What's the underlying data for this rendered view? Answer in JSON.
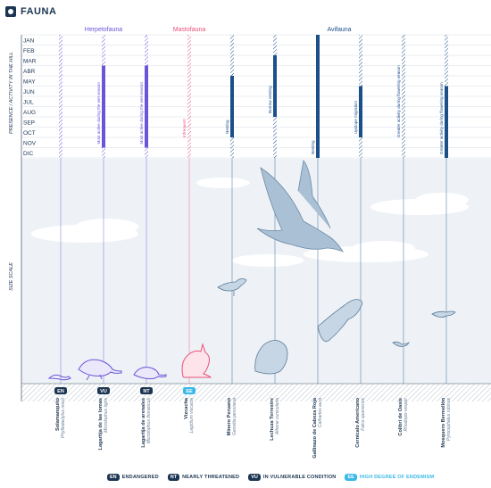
{
  "header": {
    "title": "FAUNA",
    "icon": "fauna-logo-icon"
  },
  "groups": [
    {
      "name": "Herpetofauna",
      "color": "#6a55d9"
    },
    {
      "name": "Mastofauna",
      "color": "#e8507a"
    },
    {
      "name": "Avifauna",
      "color": "#1b4f8a"
    }
  ],
  "y_axis_top": "PRESENCE / ACTIVITY IN THE HILL",
  "y_axis_bottom": "SIZE SCALE",
  "months": [
    "JAN",
    "FEB",
    "MAR",
    "ABR",
    "MAY",
    "JUN",
    "JUL",
    "AUG",
    "SEP",
    "OCT",
    "NOV",
    "DIC"
  ],
  "species": [
    {
      "common": "Solamanquito",
      "latin": "Phyllodactylus reissi",
      "status": "EN",
      "group": 0,
      "active": [],
      "note": ""
    },
    {
      "common": "Lagartija de las lomas",
      "latin": "Microlophus tigris",
      "status": "VU",
      "group": 0,
      "active": [
        3,
        10
      ],
      "note": "Most active during the wet season"
    },
    {
      "common": "Lagartija de arenales",
      "latin": "Microlophus thoracicus",
      "status": "NT",
      "group": 0,
      "active": [
        3,
        10
      ],
      "note": "Most active during the wet season"
    },
    {
      "common": "Vizcacha",
      "latin": "Lagidium viscacia",
      "status": "EE",
      "group": 1,
      "active": [],
      "note": "Infrequent"
    },
    {
      "common": "Minero Peruano",
      "latin": "Geositta peruviana",
      "status": "",
      "group": 2,
      "active": [
        4,
        9
      ],
      "note": "Nesting"
    },
    {
      "common": "Lechuza Terrestre",
      "latin": "Athene cunicularia",
      "status": "",
      "group": 2,
      "active": [
        2,
        7
      ],
      "note": "Burrow nesting"
    },
    {
      "common": "Gallinazo de Cabeza Roja",
      "latin": "Cathartes aura",
      "status": "",
      "group": 2,
      "active": [
        0,
        11
      ],
      "note": "Nesting"
    },
    {
      "common": "Cernícalo Americano",
      "latin": "Falco sparverius",
      "status": "",
      "group": 2,
      "active": [
        5,
        9
      ],
      "note": "Upslope migration"
    },
    {
      "common": "Colibrí de Oasis",
      "latin": "Rhodopis vesper",
      "status": "",
      "group": 2,
      "active": [],
      "note": "Greater activity during flowering season"
    },
    {
      "common": "Mosquero Bermellón",
      "latin": "Pyrocephalus rubinus",
      "status": "",
      "group": 2,
      "active": [
        5,
        11
      ],
      "note": "Greater activity during flowering season"
    }
  ],
  "legend": [
    {
      "code": "EN",
      "label": "ENDANGERED",
      "color": "#1b3552"
    },
    {
      "code": "NT",
      "label": "NEARLY THREATENED",
      "color": "#1b3552"
    },
    {
      "code": "VU",
      "label": "IN VULNERABLE CONDITION",
      "color": "#1b3552"
    },
    {
      "code": "EE",
      "label": "HIGH DEGREE OF ENDEMISM",
      "color": "#39b8e8"
    }
  ]
}
